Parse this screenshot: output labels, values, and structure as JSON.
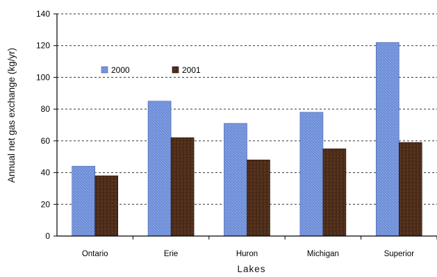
{
  "chart_data": {
    "type": "bar",
    "categories": [
      "Ontario",
      "Erie",
      "Huron",
      "Michigan",
      "Superior"
    ],
    "series": [
      {
        "name": "2000",
        "values": [
          44,
          85,
          71,
          78,
          122
        ],
        "color": "#6f8fd8"
      },
      {
        "name": "2001",
        "values": [
          38,
          62,
          48,
          55,
          59
        ],
        "color": "#4a2a18"
      }
    ],
    "title": "",
    "xlabel": "Lakes",
    "ylabel": "Annual net gas exchange  (kg/yr)",
    "ylim": [
      0,
      140
    ],
    "yticks": [
      0,
      20,
      40,
      60,
      80,
      100,
      120,
      140
    ],
    "grid": true,
    "legend_position": "top-left"
  }
}
